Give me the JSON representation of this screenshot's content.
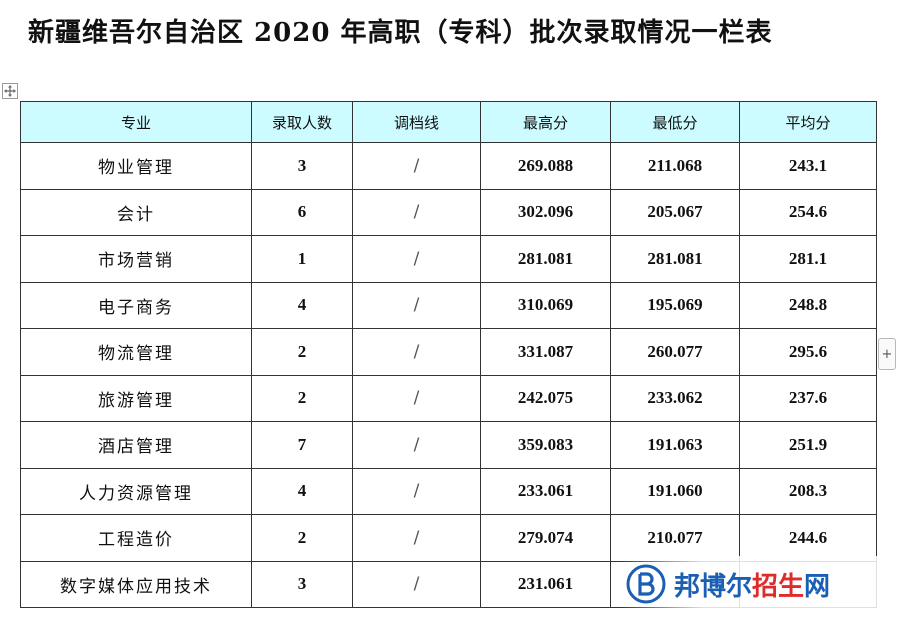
{
  "title": "新疆维吾尔自治区 2020 年高职（专科）批次录取情况一栏表",
  "table": {
    "headers": [
      "专业",
      "录取人数",
      "调档线",
      "最高分",
      "最低分",
      "平均分"
    ],
    "rows": [
      {
        "major": "物业管理",
        "admitted": "3",
        "cutoff": "/",
        "max": "269.088",
        "min": "211.068",
        "avg": "243.1"
      },
      {
        "major": "会计",
        "admitted": "6",
        "cutoff": "/",
        "max": "302.096",
        "min": "205.067",
        "avg": "254.6"
      },
      {
        "major": "市场营销",
        "admitted": "1",
        "cutoff": "/",
        "max": "281.081",
        "min": "281.081",
        "avg": "281.1"
      },
      {
        "major": "电子商务",
        "admitted": "4",
        "cutoff": "/",
        "max": "310.069",
        "min": "195.069",
        "avg": "248.8"
      },
      {
        "major": "物流管理",
        "admitted": "2",
        "cutoff": "/",
        "max": "331.087",
        "min": "260.077",
        "avg": "295.6"
      },
      {
        "major": "旅游管理",
        "admitted": "2",
        "cutoff": "/",
        "max": "242.075",
        "min": "233.062",
        "avg": "237.6"
      },
      {
        "major": "酒店管理",
        "admitted": "7",
        "cutoff": "/",
        "max": "359.083",
        "min": "191.063",
        "avg": "251.9"
      },
      {
        "major": "人力资源管理",
        "admitted": "4",
        "cutoff": "/",
        "max": "233.061",
        "min": "191.060",
        "avg": "208.3"
      },
      {
        "major": "工程造价",
        "admitted": "2",
        "cutoff": "/",
        "max": "279.074",
        "min": "210.077",
        "avg": "244.6"
      },
      {
        "major": "数字媒体应用技术",
        "admitted": "3",
        "cutoff": "/",
        "max": "231.061",
        "min": "",
        "avg": ""
      }
    ]
  },
  "ui": {
    "move_icon": "move-arrows-icon",
    "add_label": "+"
  },
  "watermark": {
    "text_blue": "邦博尔",
    "text_red": "招生",
    "text_blue2": "网",
    "logo_icon": "b-logo-icon",
    "brand_blue": "#1a5fb4",
    "brand_red": "#e02b2b"
  }
}
